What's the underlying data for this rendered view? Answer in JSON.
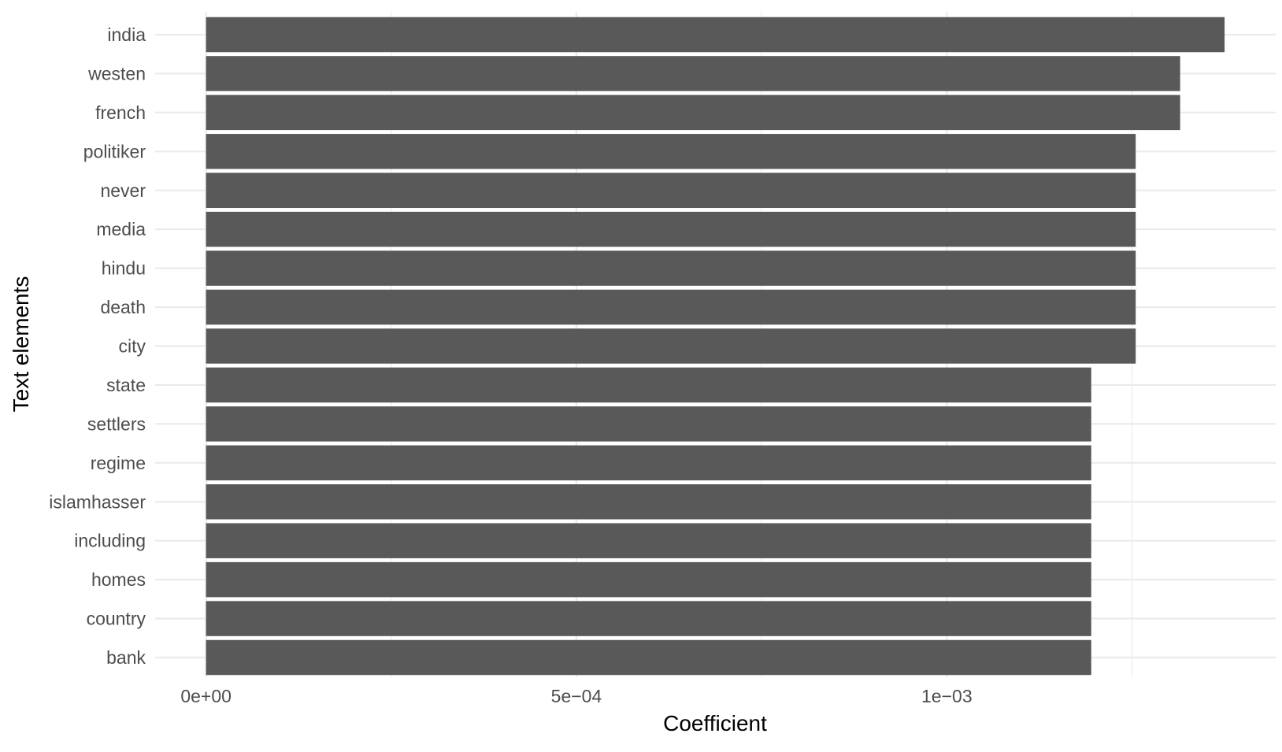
{
  "chart_data": {
    "type": "bar",
    "orientation": "horizontal",
    "xlabel": "Coefficient",
    "ylabel": "Text elements",
    "categories": [
      "india",
      "westen",
      "french",
      "politiker",
      "never",
      "media",
      "hindu",
      "death",
      "city",
      "state",
      "settlers",
      "regime",
      "islamhasser",
      "including",
      "homes",
      "country",
      "bank"
    ],
    "values": [
      0.001375,
      0.001315,
      0.001315,
      0.001255,
      0.001255,
      0.001255,
      0.001255,
      0.001255,
      0.001255,
      0.001195,
      0.001195,
      0.001195,
      0.001195,
      0.001195,
      0.001195,
      0.001195,
      0.001195
    ],
    "xlim": [
      -6.87e-05,
      0.001444
    ],
    "x_ticks": [
      {
        "value": 0,
        "label": "0e+00"
      },
      {
        "value": 0.0005,
        "label": "5e−04"
      },
      {
        "value": 0.001,
        "label": "1e−03"
      }
    ],
    "x_minor_ticks": [
      0.00025,
      0.00075,
      0.00125
    ],
    "bar_color": "#595959",
    "grid": true,
    "grid_color": "#ebebeb",
    "legend": "none"
  }
}
